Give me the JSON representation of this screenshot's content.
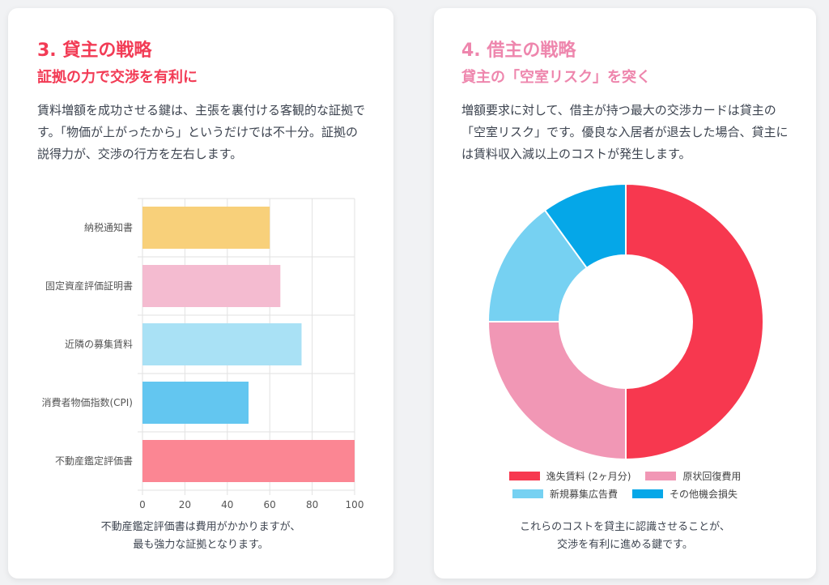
{
  "left": {
    "title": "3. 貸主の戦略",
    "subtitle": "証拠の力で交渉を有利に",
    "body": "賃料増額を成功させる鍵は、主張を裏付ける客観的な証拠です。「物価が上がったから」というだけでは不十分。証拠の説得力が、交渉の行方を左右します。",
    "caption_line1": "不動産鑑定評価書は費用がかかりますが、",
    "caption_line2": "最も強力な証拠となります。"
  },
  "right": {
    "title": "4. 借主の戦略",
    "subtitle": "貸主の「空室リスク」を突く",
    "body": "増額要求に対して、借主が持つ最大の交渉カードは貸主の「空室リスク」です。優良な入居者が退去した場合、貸主には賃料収入減以上のコストが発生します。",
    "caption_line1": "これらのコストを貸主に認識させることが、",
    "caption_line2": "交渉を有利に進める鍵です。"
  },
  "colors": {
    "title_red": "#f23b55",
    "title_pink": "#ee86ad"
  },
  "chart_data": [
    {
      "type": "bar",
      "orientation": "horizontal",
      "categories": [
        "納税通知書",
        "固定資産評価証明書",
        "近隣の募集賃料",
        "消費者物価指数(CPI)",
        "不動産鑑定評価書"
      ],
      "values": [
        60,
        65,
        75,
        50,
        100
      ],
      "colors": [
        "#f8d07a",
        "#f4bbd0",
        "#a9e1f5",
        "#63c6f0",
        "#fb8693"
      ],
      "xlim": [
        0,
        100
      ],
      "xticks": [
        0,
        20,
        40,
        60,
        80,
        100
      ],
      "grid": true
    },
    {
      "type": "pie",
      "style": "doughnut",
      "labels": [
        "逸失賃料 (2ヶ月分)",
        "原状回復費用",
        "新規募集広告費",
        "その他機会損失"
      ],
      "values": [
        50,
        25,
        15,
        10
      ],
      "colors": [
        "#f7384f",
        "#f197b5",
        "#76d1f2",
        "#05a7e8"
      ],
      "legend": "bottom"
    }
  ]
}
